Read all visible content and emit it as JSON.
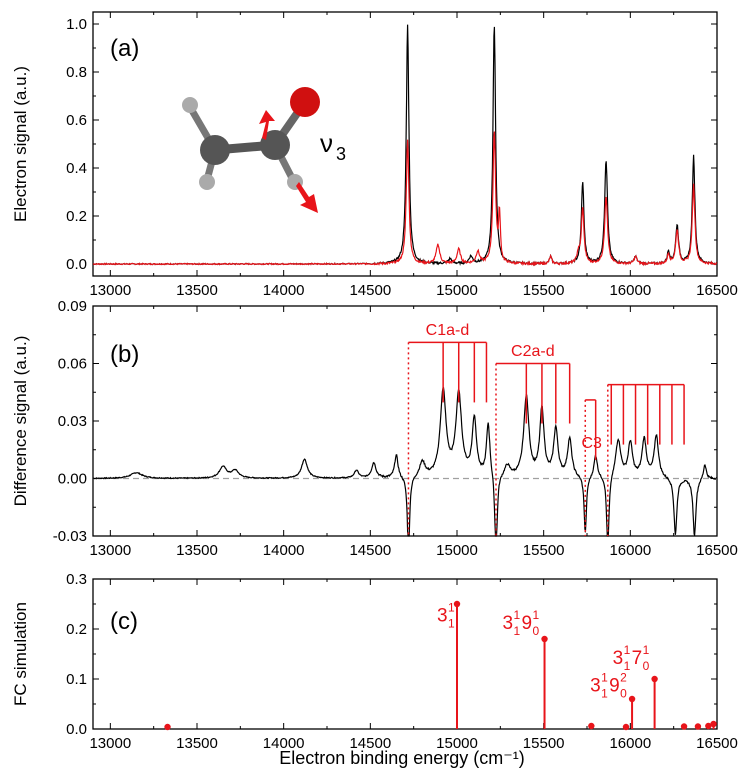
{
  "chart_data": [
    {
      "type": "line",
      "panel_label": "(a)",
      "ylabel": "Electron signal (a.u.)",
      "xlim": [
        12900,
        16500
      ],
      "ylim": [
        -0.05,
        1.05
      ],
      "yticks": [
        0.0,
        0.2,
        0.4,
        0.6,
        0.8,
        1.0
      ],
      "ytick_labels": [
        "0.0",
        "0.2",
        "0.4",
        "0.6",
        "0.8",
        "1.0"
      ],
      "xticks": [
        13000,
        13500,
        14000,
        14500,
        15000,
        15500,
        16000,
        16500
      ],
      "xtick_labels": [
        "13000",
        "13500",
        "14000",
        "14500",
        "15000",
        "15500",
        "16000",
        "16500"
      ],
      "annotation": "ν3",
      "series": [
        {
          "color": "#000000",
          "peaks": [
            [
              14715,
              1.0,
              9
            ],
            [
              15215,
              1.0,
              9
            ],
            [
              15725,
              0.34,
              9
            ],
            [
              15860,
              0.43,
              10
            ],
            [
              16270,
              0.16,
              10
            ],
            [
              16365,
              0.45,
              9
            ],
            [
              16220,
              0.05,
              8
            ],
            [
              15540,
              0.03,
              8
            ],
            [
              16030,
              0.03,
              10
            ],
            [
              14960,
              0.02,
              12
            ],
            [
              15080,
              0.03,
              12
            ]
          ]
        },
        {
          "color": "#e8141a",
          "peaks": [
            [
              14715,
              0.52,
              9
            ],
            [
              15215,
              0.55,
              9
            ],
            [
              15725,
              0.23,
              9
            ],
            [
              15860,
              0.28,
              10
            ],
            [
              16270,
              0.14,
              10
            ],
            [
              16365,
              0.33,
              9
            ],
            [
              16220,
              0.04,
              8
            ],
            [
              15540,
              0.03,
              8
            ],
            [
              16030,
              0.03,
              10
            ],
            [
              14890,
              0.08,
              12
            ],
            [
              15010,
              0.06,
              12
            ],
            [
              15120,
              0.05,
              12
            ],
            [
              15245,
              0.2,
              6
            ],
            [
              15700,
              0.04,
              10
            ]
          ]
        }
      ]
    },
    {
      "type": "line",
      "panel_label": "(b)",
      "ylabel": "Difference signal (a.u.)",
      "xlim": [
        12900,
        16500
      ],
      "ylim": [
        -0.03,
        0.09
      ],
      "yticks": [
        -0.03,
        0.0,
        0.03,
        0.06,
        0.09
      ],
      "ytick_labels": [
        "-0.03",
        "0.00",
        "0.03",
        "0.06",
        "0.09"
      ],
      "xticks": [
        13000,
        13500,
        14000,
        14500,
        15000,
        15500,
        16000,
        16500
      ],
      "xtick_labels": [
        "13000",
        "13500",
        "14000",
        "14500",
        "15000",
        "15500",
        "16000",
        "16500"
      ],
      "series": [
        {
          "color": "#000000",
          "peaks": [
            [
              13150,
              0.003,
              40
            ],
            [
              13650,
              0.006,
              25
            ],
            [
              13720,
              0.004,
              25
            ],
            [
              14120,
              0.01,
              20
            ],
            [
              14420,
              0.004,
              15
            ],
            [
              14520,
              0.008,
              15
            ],
            [
              14650,
              0.012,
              12
            ],
            [
              14920,
              0.045,
              20
            ],
            [
              15010,
              0.043,
              20
            ],
            [
              15100,
              0.03,
              15
            ],
            [
              15180,
              0.028,
              12
            ],
            [
              15400,
              0.042,
              18
            ],
            [
              15490,
              0.035,
              15
            ],
            [
              15570,
              0.025,
              15
            ],
            [
              15650,
              0.02,
              15
            ],
            [
              15800,
              0.012,
              12
            ],
            [
              15930,
              0.02,
              18
            ],
            [
              16000,
              0.018,
              15
            ],
            [
              16080,
              0.02,
              15
            ],
            [
              16150,
              0.022,
              15
            ],
            [
              14720,
              -0.04,
              8
            ],
            [
              15225,
              -0.045,
              8
            ],
            [
              15740,
              -0.03,
              8
            ],
            [
              15870,
              -0.04,
              8
            ],
            [
              16260,
              -0.03,
              10
            ],
            [
              16370,
              -0.03,
              10
            ],
            [
              16430,
              0.008,
              10
            ],
            [
              14800,
              0.008,
              20
            ],
            [
              15290,
              0.006,
              20
            ]
          ]
        }
      ],
      "baseline": 0.0,
      "annotations": [
        {
          "label": "C1a-d",
          "origin": 14720,
          "bar_y": 0.071,
          "label_y": 0.075,
          "stems": [
            14920,
            15010,
            15100,
            15170
          ]
        },
        {
          "label": "C2a-d",
          "origin": 15225,
          "bar_y": 0.06,
          "label_y": 0.064,
          "stems": [
            15400,
            15490,
            15570,
            15650
          ]
        },
        {
          "label": "C3",
          "origin": 15740,
          "bar_y": 0.041,
          "label_y": 0.016,
          "stems": [
            15800
          ]
        },
        {
          "label": "",
          "origin": 15870,
          "bar_y": 0.049,
          "label_y": 0,
          "stems": [
            15890,
            15960,
            16030,
            16100,
            16170,
            16240,
            16310
          ]
        }
      ]
    },
    {
      "type": "stem",
      "panel_label": "(c)",
      "ylabel": "FC simulation",
      "xlabel": "Electron binding energy (cm⁻¹)",
      "xlim": [
        12900,
        16500
      ],
      "ylim": [
        0.0,
        0.3
      ],
      "yticks": [
        0.0,
        0.1,
        0.2,
        0.3
      ],
      "ytick_labels": [
        "0.0",
        "0.1",
        "0.2",
        "0.3"
      ],
      "xticks": [
        13000,
        13500,
        14000,
        14500,
        15000,
        15500,
        16000,
        16500
      ],
      "xtick_labels": [
        "13000",
        "13500",
        "14000",
        "14500",
        "15000",
        "15500",
        "16000",
        "16500"
      ],
      "x": [
        13330,
        15000,
        15505,
        15775,
        15975,
        16010,
        16140,
        16310,
        16390,
        16450,
        16480
      ],
      "y": [
        0.004,
        0.25,
        0.18,
        0.006,
        0.004,
        0.06,
        0.1,
        0.005,
        0.005,
        0.006,
        0.01
      ],
      "labels": [
        {
          "x": 15000,
          "base": "3",
          "sup1": "1",
          "sub1": "1",
          "sup2": "",
          "sub2": "",
          "label_y": 0.215
        },
        {
          "x": 15505,
          "base": "3",
          "sup1": "1",
          "sub1": "1",
          "base2": "9",
          "sup2": "1",
          "sub2": "0",
          "label_y": 0.2
        },
        {
          "x": 16010,
          "base": "3",
          "sup1": "1",
          "sub1": "1",
          "base2": "9",
          "sup2": "2",
          "sub2": "0",
          "label_y": 0.075
        },
        {
          "x": 16140,
          "base": "3",
          "sup1": "1",
          "sub1": "1",
          "base2": "7",
          "sup2": "1",
          "sub2": "0",
          "label_y": 0.13
        }
      ]
    }
  ],
  "colors": {
    "red": "#e8141a",
    "black": "#000000",
    "grey_dash": "#a0a0a0"
  }
}
